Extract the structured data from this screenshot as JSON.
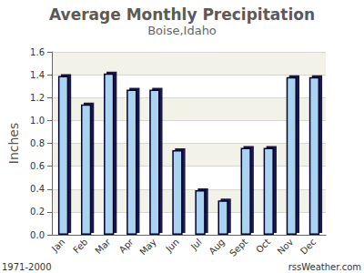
{
  "chart_data": {
    "type": "bar",
    "title": "Average Monthly Precipitation",
    "subtitle": "Boise,Idaho",
    "y_label": "Inches",
    "categories": [
      "Jan",
      "Feb",
      "Mar",
      "Apr",
      "May",
      "Jun",
      "Jul",
      "Aug",
      "Sept",
      "Oct",
      "Nov",
      "Dec"
    ],
    "values": [
      1.39,
      1.14,
      1.41,
      1.27,
      1.27,
      0.74,
      0.39,
      0.3,
      0.76,
      0.76,
      1.38,
      1.38
    ],
    "color": "#a9d3ef",
    "ylim": [
      0,
      1.6
    ],
    "yticks": [
      {
        "value": 0,
        "label": "0.0"
      },
      0.2,
      0.4,
      0.6,
      0.8,
      {
        "value": 1,
        "label": "1.0"
      },
      1.2,
      1.4,
      1.6
    ],
    "grid": true,
    "annotations": [
      "1971-2000",
      "rssWeather.com"
    ]
  }
}
